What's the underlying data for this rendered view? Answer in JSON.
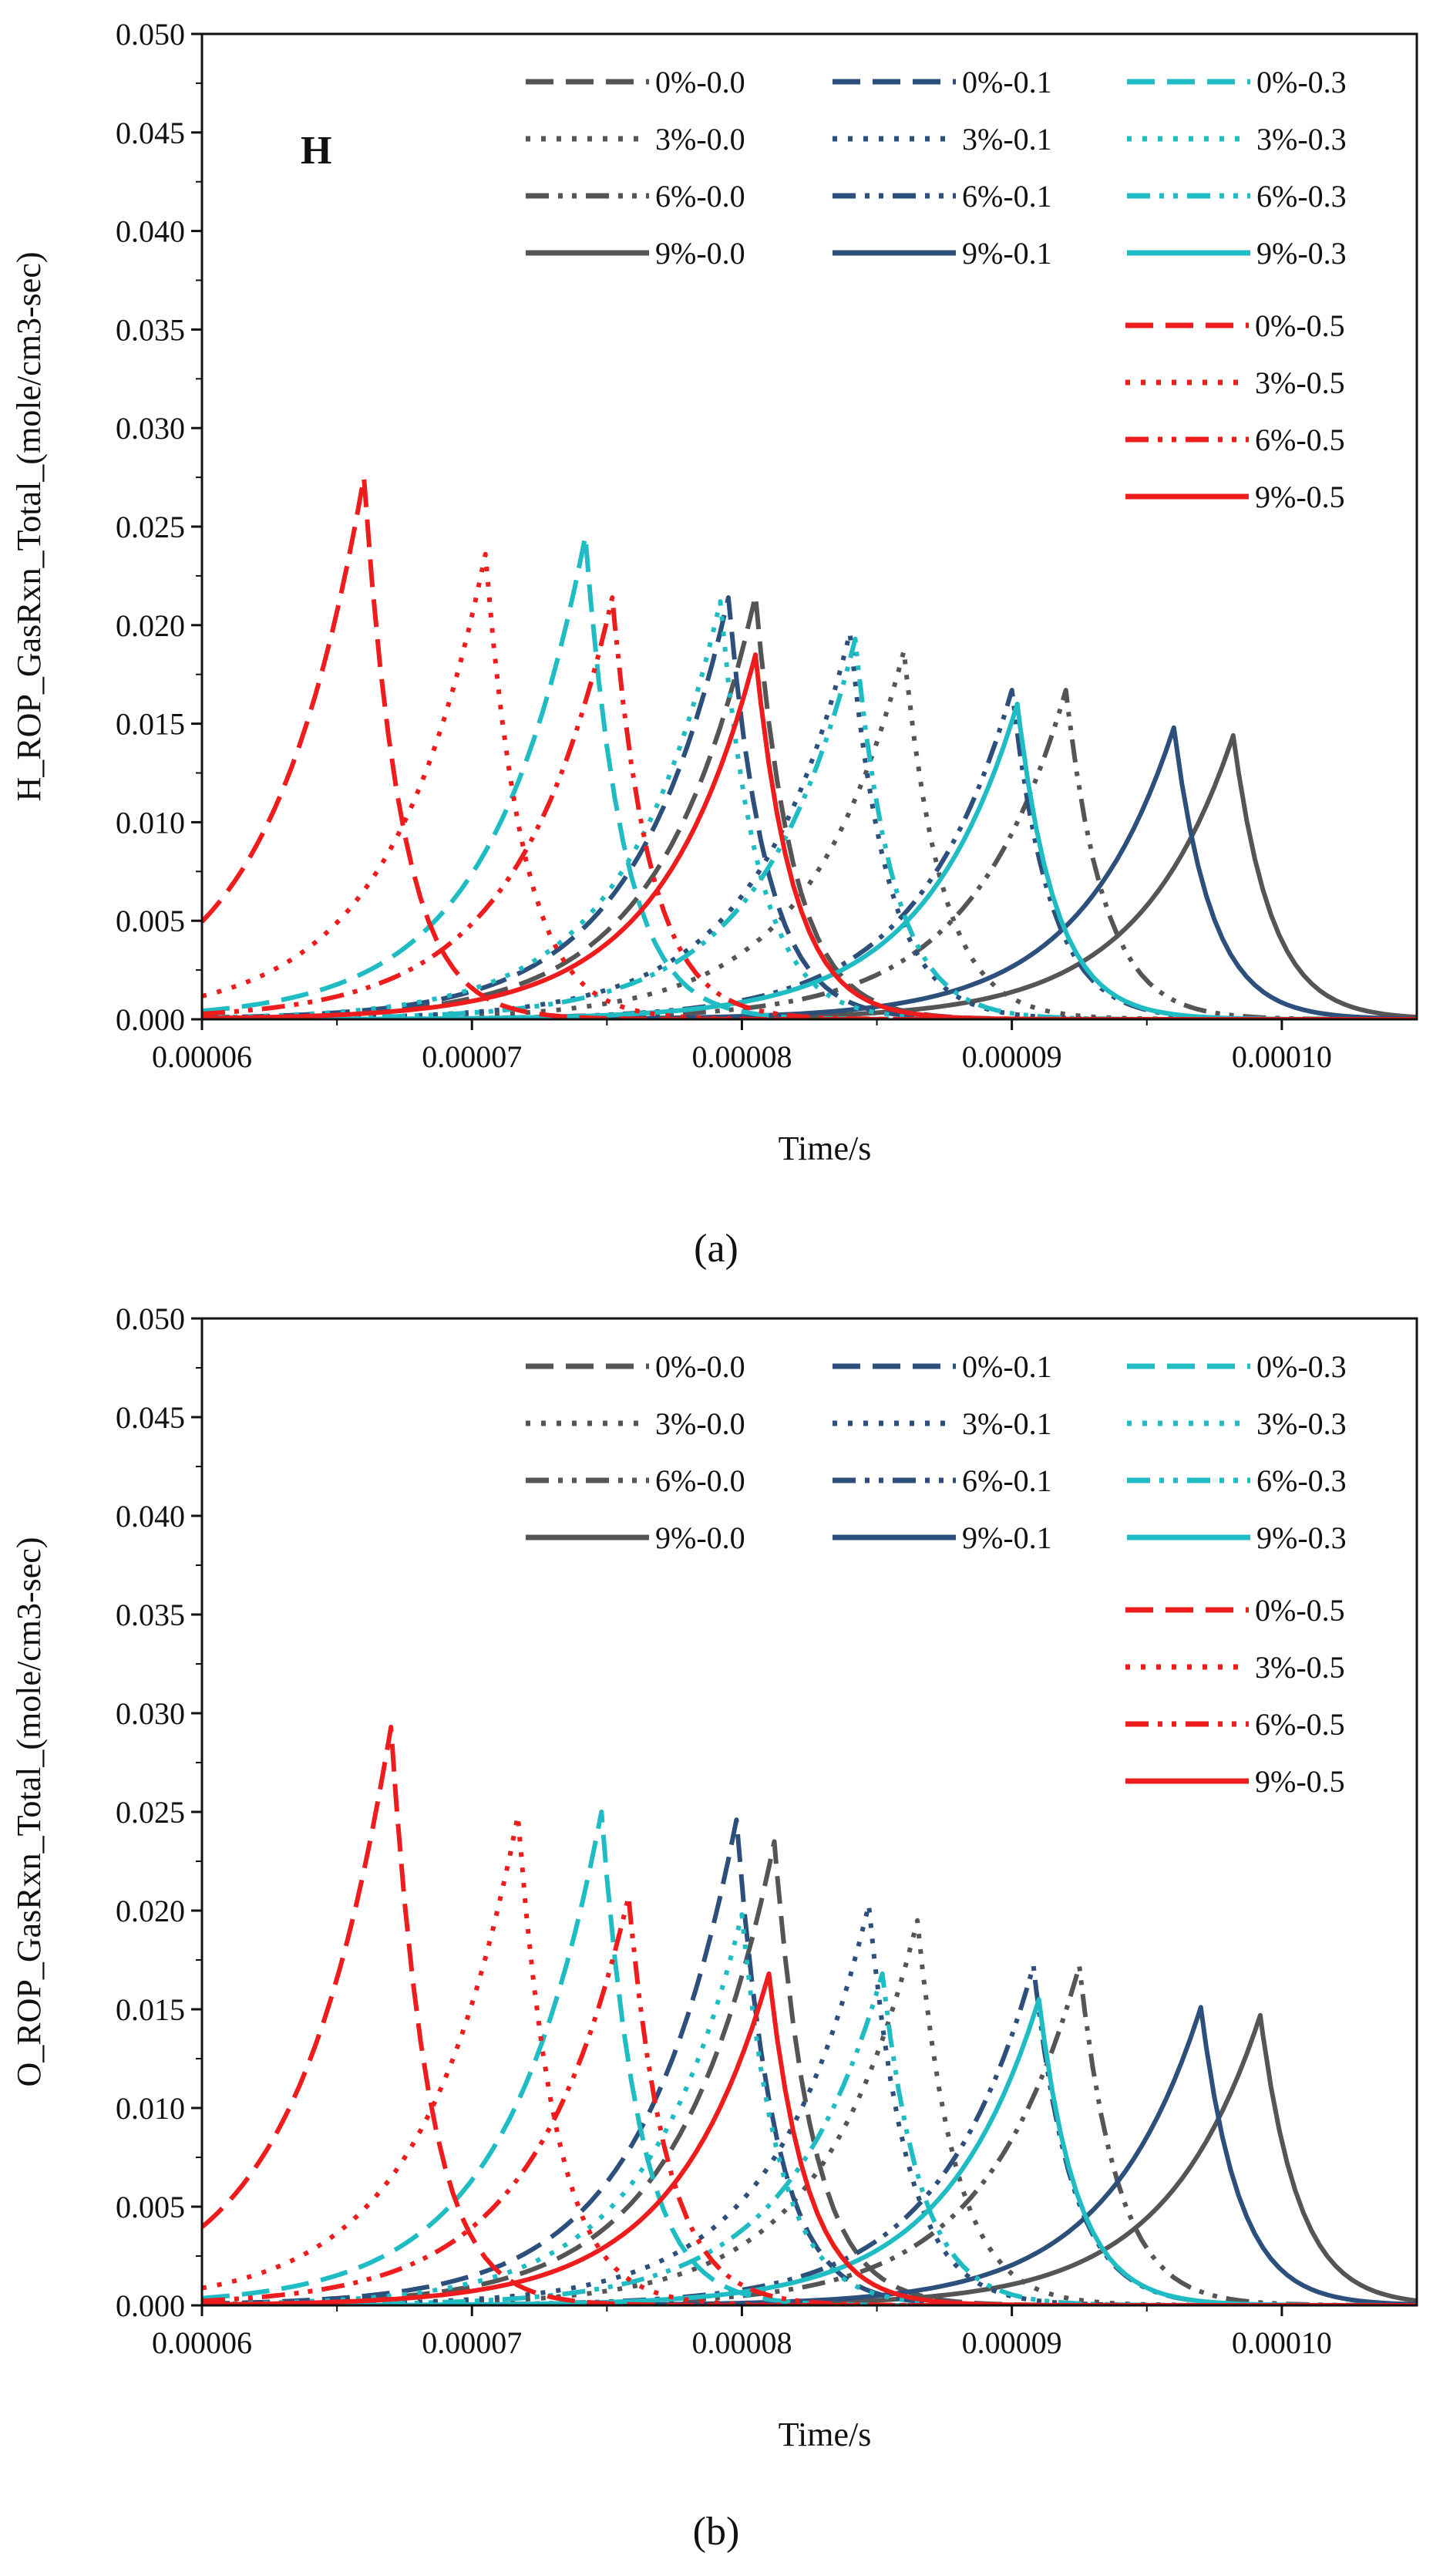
{
  "figure": {
    "captions": [
      "(a)",
      "(b)"
    ]
  },
  "chart_data": [
    {
      "type": "line",
      "panel_caption": "(a)",
      "annotation": "H",
      "title": "",
      "xlabel": "Time/s",
      "ylabel": "H_ROP_GasRxn_Total_(mole/cm3-sec)",
      "xlim": [
        6e-05,
        0.000105
      ],
      "ylim": [
        0,
        0.05
      ],
      "xticks": [
        6e-05,
        7e-05,
        8e-05,
        9e-05,
        0.0001
      ],
      "xtick_labels": [
        "0.00006",
        "0.00007",
        "0.00008",
        "0.00009",
        "0.00010"
      ],
      "yticks": [
        0,
        0.005,
        0.01,
        0.015,
        0.02,
        0.025,
        0.03,
        0.035,
        0.04,
        0.045,
        0.05
      ],
      "ytick_labels": [
        "0.000",
        "0.005",
        "0.010",
        "0.015",
        "0.020",
        "0.025",
        "0.030",
        "0.035",
        "0.040",
        "0.045",
        "0.050"
      ],
      "legend_position": "top-right",
      "series": [
        {
          "name": "0%-0.0",
          "color": "#555555",
          "dash": "dash",
          "peak": 8.05e-05,
          "height": 0.0215
        },
        {
          "name": "3%-0.0",
          "color": "#555555",
          "dash": "dot",
          "peak": 8.6e-05,
          "height": 0.0187
        },
        {
          "name": "6%-0.0",
          "color": "#555555",
          "dash": "dashdotdot",
          "peak": 9.2e-05,
          "height": 0.0167
        },
        {
          "name": "9%-0.0",
          "color": "#555555",
          "dash": "solid",
          "peak": 9.82e-05,
          "height": 0.0144
        },
        {
          "name": "0%-0.1",
          "color": "#2c4f7c",
          "dash": "dash",
          "peak": 7.95e-05,
          "height": 0.0214
        },
        {
          "name": "3%-0.1",
          "color": "#2c4f7c",
          "dash": "dot",
          "peak": 8.4e-05,
          "height": 0.0196
        },
        {
          "name": "6%-0.1",
          "color": "#2c4f7c",
          "dash": "dashdotdot",
          "peak": 9e-05,
          "height": 0.0167
        },
        {
          "name": "9%-0.1",
          "color": "#2c4f7c",
          "dash": "solid",
          "peak": 9.6e-05,
          "height": 0.0148
        },
        {
          "name": "0%-0.3",
          "color": "#1fbcc4",
          "dash": "dash",
          "peak": 7.42e-05,
          "height": 0.0245
        },
        {
          "name": "3%-0.3",
          "color": "#1fbcc4",
          "dash": "dot",
          "peak": 7.92e-05,
          "height": 0.0212
        },
        {
          "name": "6%-0.3",
          "color": "#1fbcc4",
          "dash": "dashdotdot",
          "peak": 8.42e-05,
          "height": 0.0193
        },
        {
          "name": "9%-0.3",
          "color": "#1fbcc4",
          "dash": "solid",
          "peak": 9.02e-05,
          "height": 0.016
        },
        {
          "name": "0%-0.5",
          "color": "#ee1c1c",
          "dash": "dash",
          "peak": 6.6e-05,
          "height": 0.0275
        },
        {
          "name": "3%-0.5",
          "color": "#ee1c1c",
          "dash": "dot",
          "peak": 7.05e-05,
          "height": 0.0236
        },
        {
          "name": "6%-0.5",
          "color": "#ee1c1c",
          "dash": "dashdotdot",
          "peak": 7.52e-05,
          "height": 0.0214
        },
        {
          "name": "9%-0.5",
          "color": "#ee1c1c",
          "dash": "solid",
          "peak": 8.05e-05,
          "height": 0.0185
        }
      ]
    },
    {
      "type": "line",
      "panel_caption": "(b)",
      "annotation": "",
      "title": "",
      "xlabel": "Time/s",
      "ylabel": "O_ROP_GasRxn_Total_(mole/cm3-sec)",
      "xlim": [
        6e-05,
        0.000105
      ],
      "ylim": [
        0,
        0.05
      ],
      "xticks": [
        6e-05,
        7e-05,
        8e-05,
        9e-05,
        0.0001
      ],
      "xtick_labels": [
        "0.00006",
        "0.00007",
        "0.00008",
        "0.00009",
        "0.00010"
      ],
      "yticks": [
        0,
        0.005,
        0.01,
        0.015,
        0.02,
        0.025,
        0.03,
        0.035,
        0.04,
        0.045,
        0.05
      ],
      "ytick_labels": [
        "0.000",
        "0.005",
        "0.010",
        "0.015",
        "0.020",
        "0.025",
        "0.030",
        "0.035",
        "0.040",
        "0.045",
        "0.050"
      ],
      "legend_position": "top-right",
      "series": [
        {
          "name": "0%-0.0",
          "color": "#555555",
          "dash": "dash",
          "peak": 8.12e-05,
          "height": 0.0235
        },
        {
          "name": "3%-0.0",
          "color": "#555555",
          "dash": "dot",
          "peak": 8.65e-05,
          "height": 0.0195
        },
        {
          "name": "6%-0.0",
          "color": "#555555",
          "dash": "dashdotdot",
          "peak": 9.25e-05,
          "height": 0.0172
        },
        {
          "name": "9%-0.0",
          "color": "#555555",
          "dash": "solid",
          "peak": 9.92e-05,
          "height": 0.0147
        },
        {
          "name": "0%-0.1",
          "color": "#2c4f7c",
          "dash": "dash",
          "peak": 7.98e-05,
          "height": 0.0246
        },
        {
          "name": "3%-0.1",
          "color": "#2c4f7c",
          "dash": "dot",
          "peak": 8.47e-05,
          "height": 0.0203
        },
        {
          "name": "6%-0.1",
          "color": "#2c4f7c",
          "dash": "dashdotdot",
          "peak": 9.08e-05,
          "height": 0.0172
        },
        {
          "name": "9%-0.1",
          "color": "#2c4f7c",
          "dash": "solid",
          "peak": 9.7e-05,
          "height": 0.0151
        },
        {
          "name": "0%-0.3",
          "color": "#1fbcc4",
          "dash": "dash",
          "peak": 7.48e-05,
          "height": 0.025
        },
        {
          "name": "3%-0.3",
          "color": "#1fbcc4",
          "dash": "dot",
          "peak": 8e-05,
          "height": 0.0198
        },
        {
          "name": "6%-0.3",
          "color": "#1fbcc4",
          "dash": "dashdotdot",
          "peak": 8.52e-05,
          "height": 0.0168
        },
        {
          "name": "9%-0.3",
          "color": "#1fbcc4",
          "dash": "solid",
          "peak": 9.1e-05,
          "height": 0.0155
        },
        {
          "name": "0%-0.5",
          "color": "#ee1c1c",
          "dash": "dash",
          "peak": 6.7e-05,
          "height": 0.0293
        },
        {
          "name": "3%-0.5",
          "color": "#ee1c1c",
          "dash": "dot",
          "peak": 7.17e-05,
          "height": 0.0248
        },
        {
          "name": "6%-0.5",
          "color": "#ee1c1c",
          "dash": "dashdotdot",
          "peak": 7.58e-05,
          "height": 0.0207
        },
        {
          "name": "9%-0.5",
          "color": "#ee1c1c",
          "dash": "solid",
          "peak": 8.1e-05,
          "height": 0.0168
        }
      ]
    }
  ]
}
